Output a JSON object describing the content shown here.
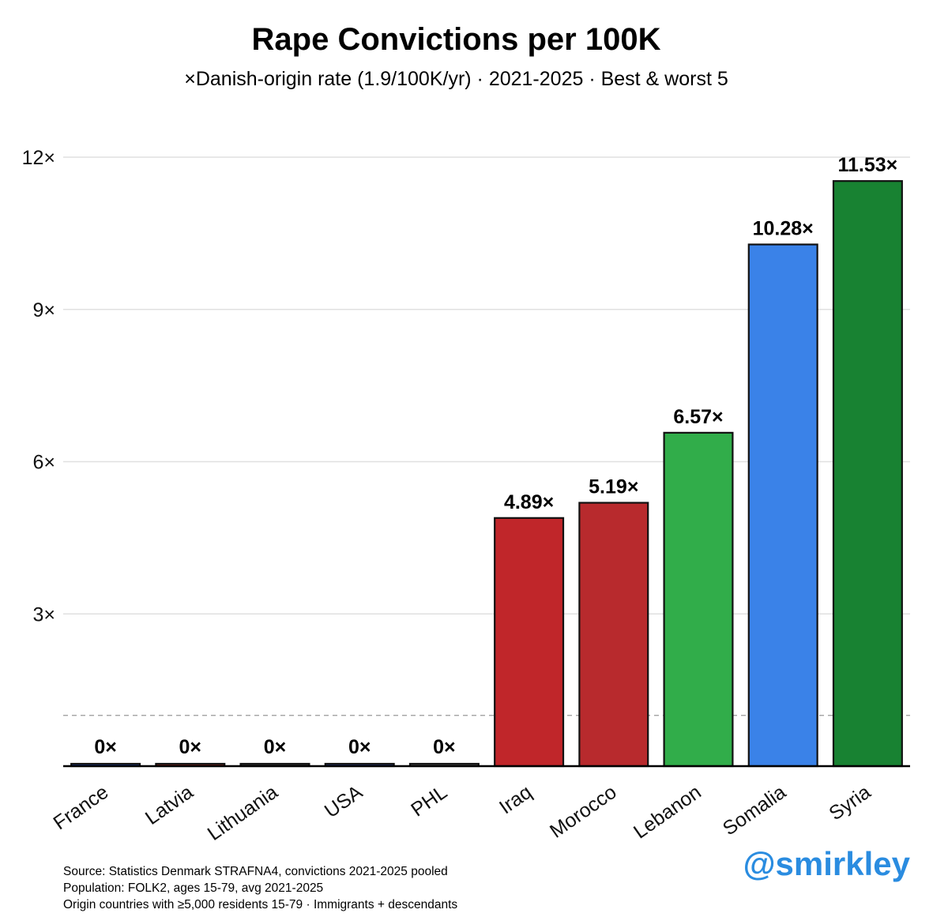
{
  "chart_data": {
    "type": "bar",
    "title": "Rape Convictions per 100K",
    "subtitle": "×Danish-origin rate (1.9/100K/yr) · 2021-2025 · Best & worst 5",
    "categories": [
      "France",
      "Latvia",
      "Lithuania",
      "USA",
      "PHL",
      "Iraq",
      "Morocco",
      "Lebanon",
      "Somalia",
      "Syria"
    ],
    "values": [
      0,
      0,
      0,
      0,
      0,
      4.89,
      5.19,
      6.57,
      10.28,
      11.53
    ],
    "value_labels": [
      "0×",
      "0×",
      "0×",
      "0×",
      "0×",
      "4.89×",
      "5.19×",
      "6.57×",
      "10.28×",
      "11.53×"
    ],
    "bar_colors": [
      "#1f3b8f",
      "#8a2a22",
      "#3a3a3a",
      "#2a3a7a",
      "#555555",
      "#c0262a",
      "#b82a2d",
      "#31ad4a",
      "#3a82e8",
      "#188232"
    ],
    "yticks": [
      3,
      6,
      9,
      12
    ],
    "ytick_labels": [
      "3×",
      "6×",
      "9×",
      "12×"
    ],
    "ylim": [
      0,
      12
    ],
    "reference_line": 1,
    "grid": true
  },
  "footer": {
    "lines": [
      "Source: Statistics Denmark STRAFNA4, convictions 2021-2025 pooled",
      "Population: FOLK2, ages 15-79, avg 2021-2025",
      "Origin countries with ≥5,000 residents 15-79 · Immigrants + descendants"
    ]
  },
  "handle": "@smirkley"
}
